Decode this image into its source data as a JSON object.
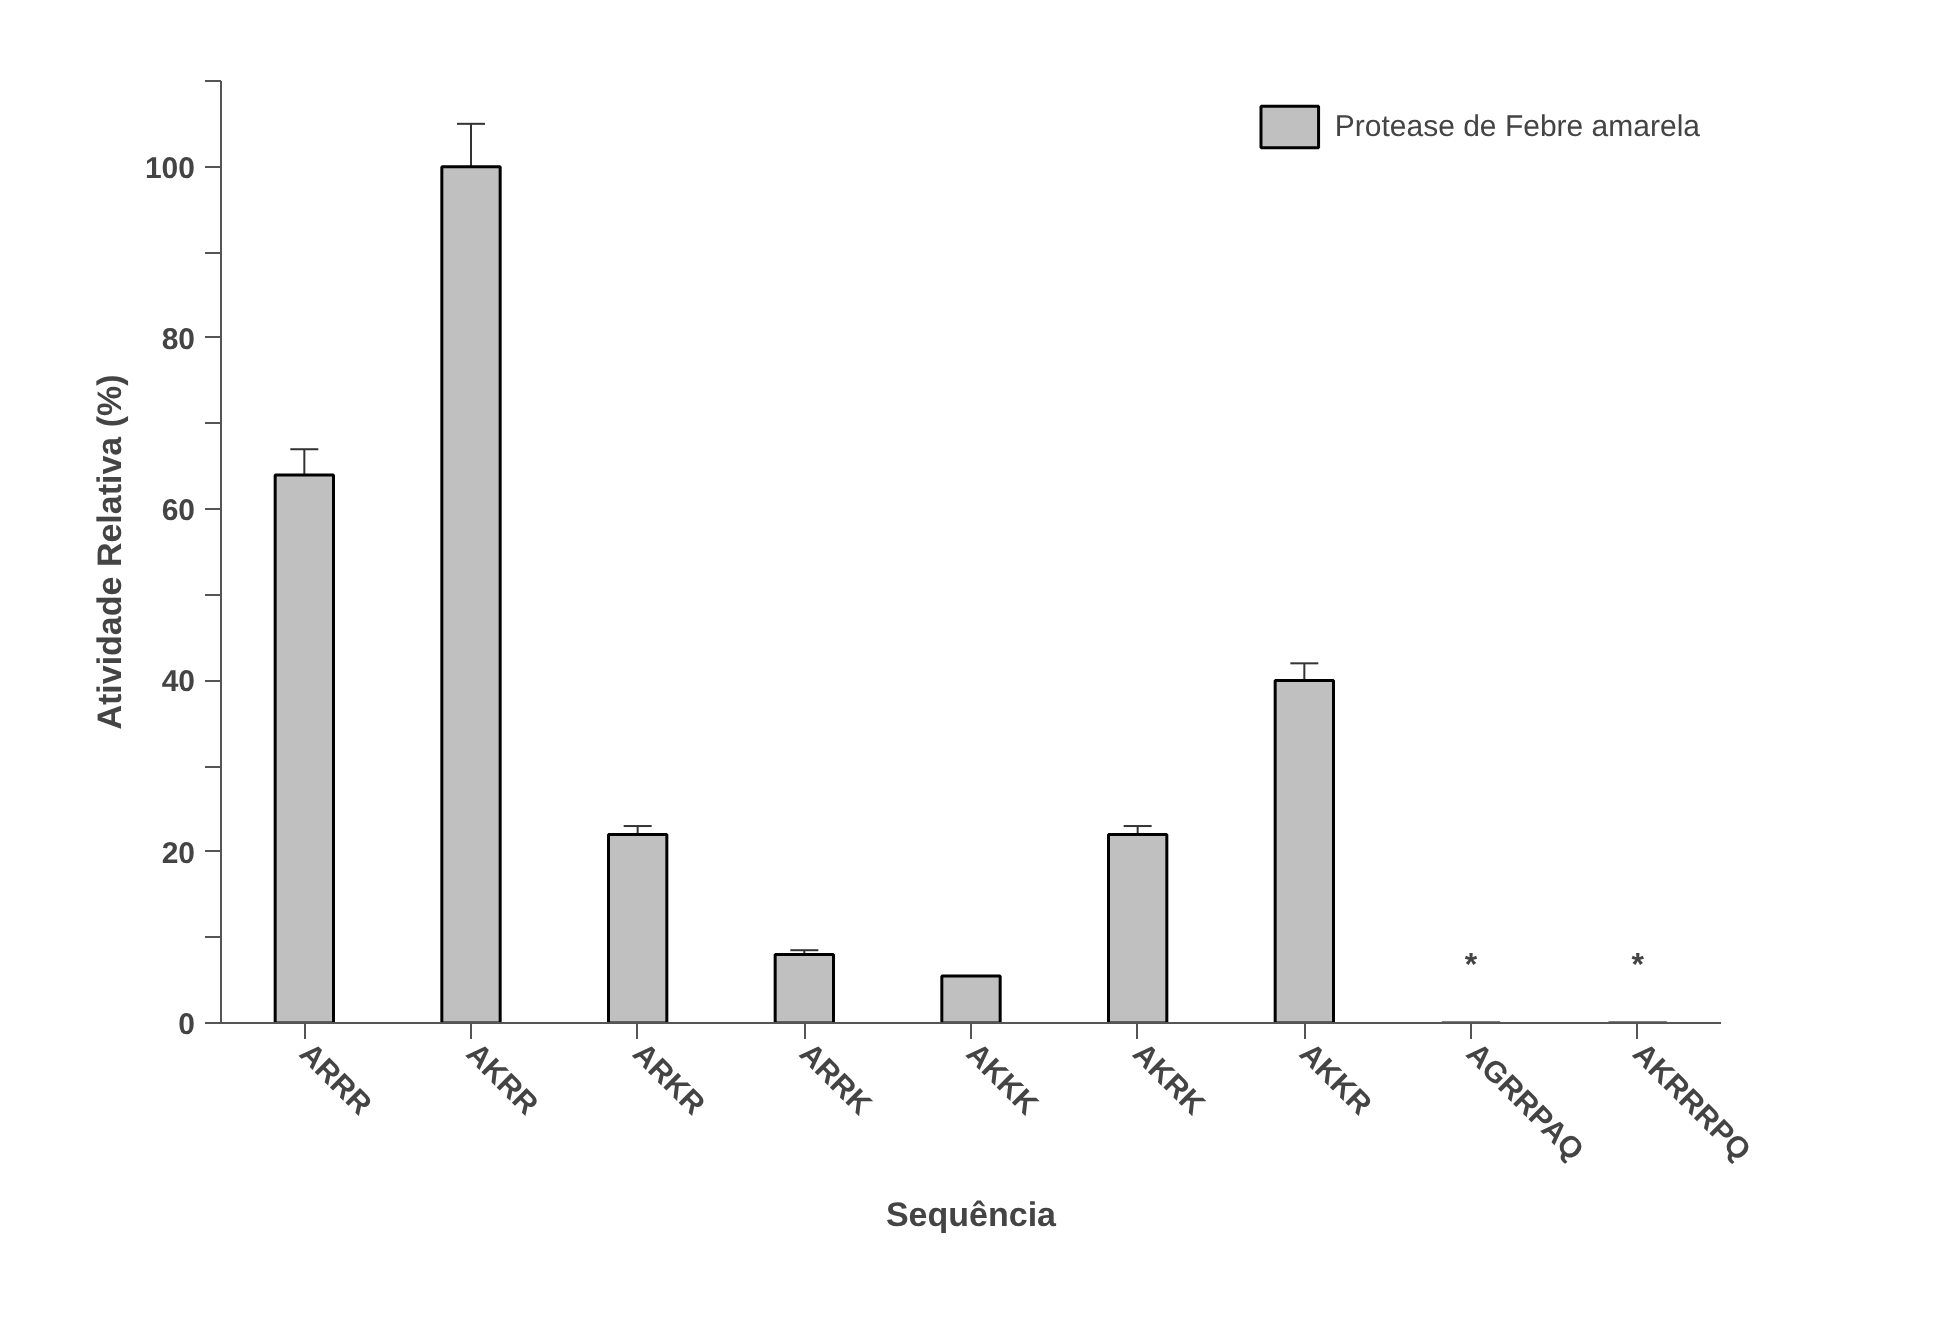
{
  "chart_data": {
    "type": "bar",
    "categories": [
      "ARRR",
      "AKRR",
      "ARKR",
      "ARRK",
      "AKKK",
      "AKRK",
      "AKKR",
      "AGRRPAQ",
      "AKRRRPQ"
    ],
    "series": [
      {
        "name": "Protease de Febre amarela",
        "color": "#c0c0c0",
        "values": [
          64,
          100,
          22,
          8,
          5.5,
          22,
          40,
          null,
          null
        ],
        "errors": [
          3,
          5,
          1,
          0.5,
          null,
          1,
          2,
          null,
          null
        ]
      }
    ],
    "xlabel": "Sequência",
    "ylabel": "Atividade Relativa (%)",
    "ylim": [
      0,
      110
    ],
    "yticks": [
      0,
      {
        "value": 10,
        "label": null
      },
      20,
      {
        "value": 30,
        "label": null
      },
      40,
      {
        "value": 50,
        "label": null
      },
      60,
      {
        "value": 70,
        "label": null
      },
      80,
      {
        "value": 90,
        "label": null
      },
      100,
      {
        "value": 110,
        "label": null
      }
    ],
    "annotations": [
      "*",
      "*"
    ],
    "legend": "top right",
    "grid": false
  }
}
